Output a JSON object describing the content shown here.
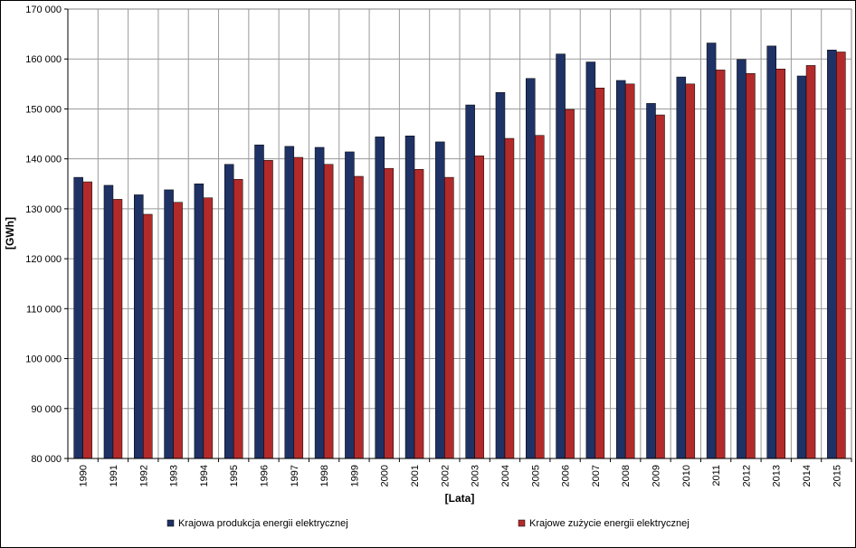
{
  "chart_data": {
    "type": "bar",
    "xlabel": "[Lata]",
    "ylabel": "[GWh]",
    "ylim": [
      80000,
      170000
    ],
    "ytick_step": 10000,
    "grid": true,
    "legend_position": "bottom",
    "categories": [
      "1990",
      "1991",
      "1992",
      "1993",
      "1994",
      "1995",
      "1996",
      "1997",
      "1998",
      "1999",
      "2000",
      "2001",
      "2002",
      "2003",
      "2004",
      "2005",
      "2006",
      "2007",
      "2008",
      "2009",
      "2010",
      "2011",
      "2012",
      "2013",
      "2014",
      "2015"
    ],
    "series": [
      {
        "name": "Krajowa produkcja energii elektrycznej",
        "color": "#1f3265",
        "values": [
          136300,
          134700,
          132800,
          133800,
          135000,
          138900,
          142800,
          142500,
          142300,
          141400,
          144400,
          144600,
          143400,
          150800,
          153300,
          156100,
          161000,
          159400,
          155700,
          151100,
          156400,
          163200,
          159900,
          162600,
          156600,
          161800
        ]
      },
      {
        "name": "Krajowe zużycie energii elektrycznej",
        "color": "#b32a2a",
        "values": [
          135400,
          131900,
          128900,
          131300,
          132200,
          135900,
          139700,
          140300,
          138900,
          136500,
          138100,
          137900,
          136300,
          140600,
          144100,
          144700,
          149900,
          154200,
          155000,
          148800,
          155000,
          157800,
          157100,
          158000,
          158700,
          161400
        ]
      }
    ]
  }
}
